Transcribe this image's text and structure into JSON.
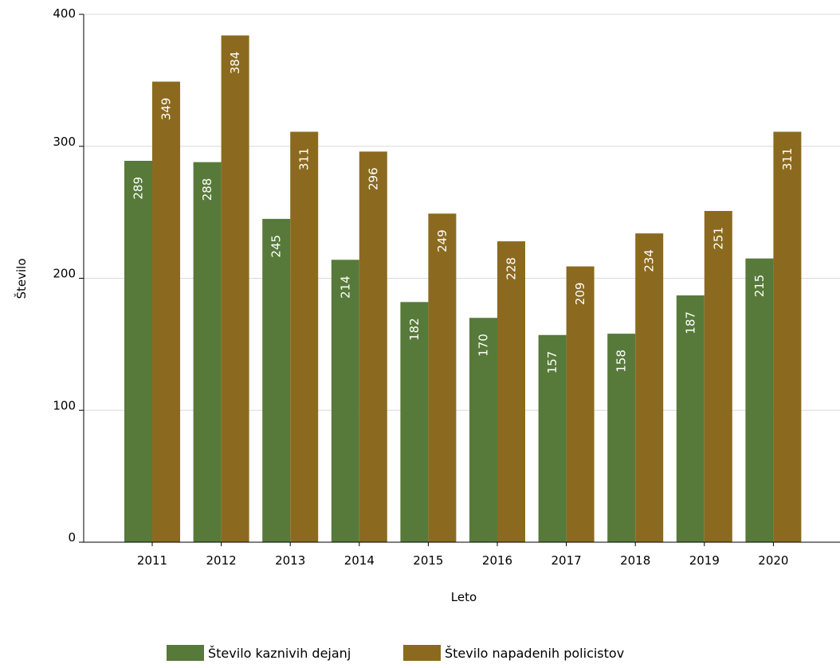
{
  "chart_data": {
    "type": "bar",
    "title": "",
    "xlabel": "Leto",
    "ylabel": "Število",
    "ylim": [
      0,
      400
    ],
    "yticks": [
      0,
      100,
      200,
      300,
      400
    ],
    "grid": true,
    "legend_position": "bottom",
    "categories": [
      "2011",
      "2012",
      "2013",
      "2014",
      "2015",
      "2016",
      "2017",
      "2018",
      "2019",
      "2020"
    ],
    "series": [
      {
        "name": "Število kaznivih dejanj",
        "color": "#577a3a",
        "values": [
          289,
          288,
          245,
          214,
          182,
          170,
          157,
          158,
          187,
          215
        ]
      },
      {
        "name": "Število napadenih policistov",
        "color": "#8b6a1f",
        "values": [
          349,
          384,
          311,
          296,
          249,
          228,
          209,
          234,
          251,
          311
        ]
      }
    ]
  }
}
